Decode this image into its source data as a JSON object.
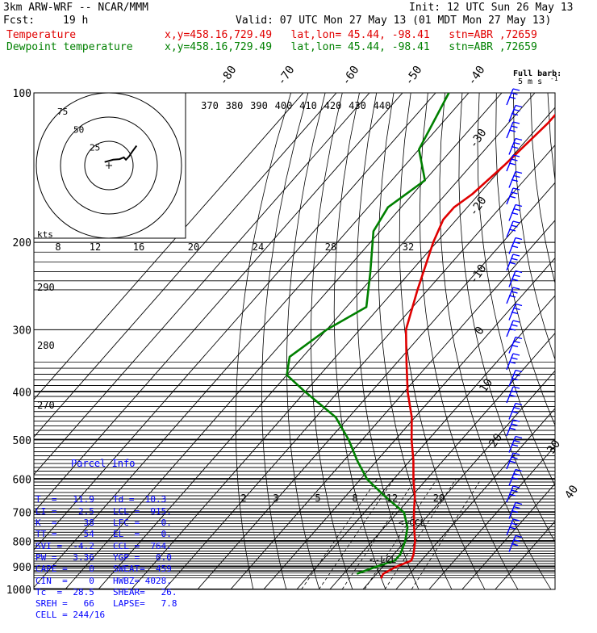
{
  "header": {
    "model": "3km ARW-WRF -- NCAR/MMM",
    "init": "Init: 12 UTC Sun 26 May 13",
    "fcst_label": "Fcst:",
    "fcst_hours": "19 h",
    "valid": "Valid: 07 UTC Mon 27 May 13 (01 MDT Mon 27 May 13)",
    "temperature_label": "Temperature",
    "dewpoint_label": "Dewpoint temperature",
    "temperature_info": "x,y=458.16,729.49   lat,lon= 45.44, -98.41   stn=ABR ,72659",
    "dewpoint_info": "x,y=458.16,729.49   lat,lon= 45.44, -98.41   stn=ABR ,72659"
  },
  "colors": {
    "temperature": "#e00000",
    "dewpoint": "#008000",
    "wind_barbs": "#0000ff",
    "info_text": "#0000ff",
    "grid": "#000000"
  },
  "chart_data": {
    "type": "line",
    "subtype": "skew-t log-p sounding",
    "pressure_ticks": [
      "100",
      "200",
      "300",
      "400",
      "500",
      "600",
      "700",
      "800",
      "900",
      "1000"
    ],
    "pressure_range_hPa": [
      1000,
      100
    ],
    "temperature_ticks": [
      "-80",
      "-70",
      "-60",
      "-50",
      "-40",
      "-30",
      "-20",
      "-10",
      "0",
      "10",
      "20",
      "30",
      "40"
    ],
    "theta_labels": [
      "370",
      "380",
      "390",
      "400",
      "410",
      "420",
      "430",
      "440"
    ],
    "theta_e_labels": [
      "290",
      "280",
      "270"
    ],
    "mixing_ratio_labels": [
      "2",
      "3",
      "5",
      "8",
      "12",
      "20"
    ],
    "series": [
      {
        "name": "Temperature",
        "points": [
          {
            "p": 100,
            "t": -58
          },
          {
            "p": 115,
            "t": -58
          },
          {
            "p": 140,
            "t": -60
          },
          {
            "p": 160,
            "t": -62
          },
          {
            "p": 170,
            "t": -64
          },
          {
            "p": 180,
            "t": -64
          },
          {
            "p": 200,
            "t": -61
          },
          {
            "p": 250,
            "t": -53
          },
          {
            "p": 300,
            "t": -46
          },
          {
            "p": 350,
            "t": -37
          },
          {
            "p": 400,
            "t": -29
          },
          {
            "p": 450,
            "t": -21
          },
          {
            "p": 500,
            "t": -15
          },
          {
            "p": 550,
            "t": -9
          },
          {
            "p": 600,
            "t": -4
          },
          {
            "p": 650,
            "t": 1
          },
          {
            "p": 700,
            "t": 5
          },
          {
            "p": 750,
            "t": 9
          },
          {
            "p": 800,
            "t": 13
          },
          {
            "p": 850,
            "t": 16
          },
          {
            "p": 875,
            "t": 17
          },
          {
            "p": 900,
            "t": 14
          },
          {
            "p": 930,
            "t": 12
          },
          {
            "p": 950,
            "t": 12.5
          }
        ]
      },
      {
        "name": "Dewpoint temperature",
        "points": [
          {
            "p": 100,
            "t": -96
          },
          {
            "p": 130,
            "t": -90
          },
          {
            "p": 150,
            "t": -80
          },
          {
            "p": 170,
            "t": -84
          },
          {
            "p": 190,
            "t": -82
          },
          {
            "p": 230,
            "t": -72
          },
          {
            "p": 270,
            "t": -64
          },
          {
            "p": 300,
            "t": -70
          },
          {
            "p": 340,
            "t": -74
          },
          {
            "p": 370,
            "t": -70
          },
          {
            "p": 400,
            "t": -60
          },
          {
            "p": 450,
            "t": -44
          },
          {
            "p": 500,
            "t": -34
          },
          {
            "p": 550,
            "t": -26
          },
          {
            "p": 600,
            "t": -18
          },
          {
            "p": 650,
            "t": -8
          },
          {
            "p": 700,
            "t": 2
          },
          {
            "p": 750,
            "t": 7
          },
          {
            "p": 800,
            "t": 10
          },
          {
            "p": 850,
            "t": 12
          },
          {
            "p": 875,
            "t": 12
          },
          {
            "p": 900,
            "t": 8
          },
          {
            "p": 930,
            "t": 4
          }
        ]
      }
    ],
    "annotations": [
      "<-CCL",
      "<-LCL"
    ],
    "wind_legend": {
      "title": "Full barb:",
      "value": "5 m s",
      "superscript": "-1"
    },
    "hodograph": {
      "units": "kts",
      "ring_labels": [
        "25",
        "50",
        "75"
      ],
      "speed_ticks": [
        "8",
        "12",
        "16",
        "20",
        "24",
        "28",
        "32"
      ],
      "trace": [
        {
          "u": -4,
          "v": 6
        },
        {
          "u": 4,
          "v": 10
        },
        {
          "u": 10,
          "v": 11
        },
        {
          "u": 14,
          "v": 14
        },
        {
          "u": 16,
          "v": 10
        },
        {
          "u": 19,
          "v": 16
        },
        {
          "u": 22,
          "v": 24
        },
        {
          "u": 26,
          "v": 34
        }
      ]
    }
  },
  "parcel_info": {
    "title": "Parcel Info",
    "rows": [
      [
        "T  =   11.9",
        "Td =  10.3"
      ],
      [
        "LI =    2.5",
        "LCL =  915."
      ],
      [
        "K  =     38",
        "LFC =    0."
      ],
      [
        "TT =     54",
        "EL  =    0."
      ],
      [
        "SVI =  -4.2",
        "CCL =  764."
      ],
      [
        "PW =   3.36",
        "YGP =   0.0"
      ],
      [
        "CAPE =    0",
        "SWEAT=  459"
      ],
      [
        "CIN  =    0",
        "HWBZ= 4028."
      ],
      [
        "Tc  =  28.5",
        "SHEAR=   26."
      ],
      [
        "SREH =   66",
        "LAPSE=   7.8"
      ],
      [
        "CELL = 244/16",
        ""
      ]
    ]
  }
}
